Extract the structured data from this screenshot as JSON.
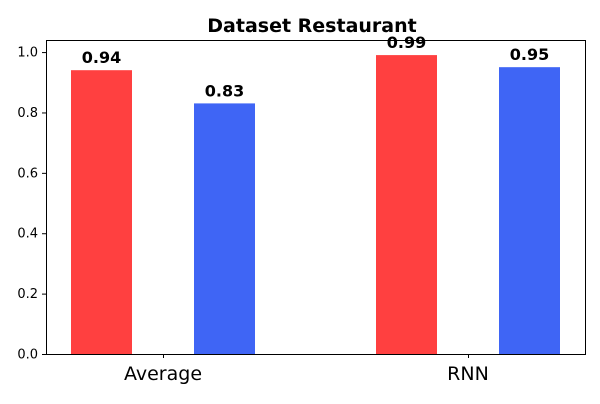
{
  "chart_data": {
    "type": "bar",
    "title": "Dataset Restaurant",
    "xlabel": "",
    "ylabel": "",
    "categories": [
      "Average",
      "RNN"
    ],
    "series": [
      {
        "values": [
          0.94,
          0.99
        ],
        "color": "#ff4040"
      },
      {
        "values": [
          0.83,
          0.95
        ],
        "color": "#3f65f5"
      }
    ],
    "data_labels": [
      [
        "0.94",
        "0.99"
      ],
      [
        "0.83",
        "0.95"
      ]
    ],
    "ylim": [
      0,
      1.04
    ],
    "yticks": [
      0.0,
      0.2,
      0.4,
      0.6,
      0.8,
      1.0
    ],
    "ytick_labels": [
      "0.0",
      "0.2",
      "0.4",
      "0.6",
      "0.8",
      "1.0"
    ],
    "grid": false,
    "legend": "none"
  }
}
